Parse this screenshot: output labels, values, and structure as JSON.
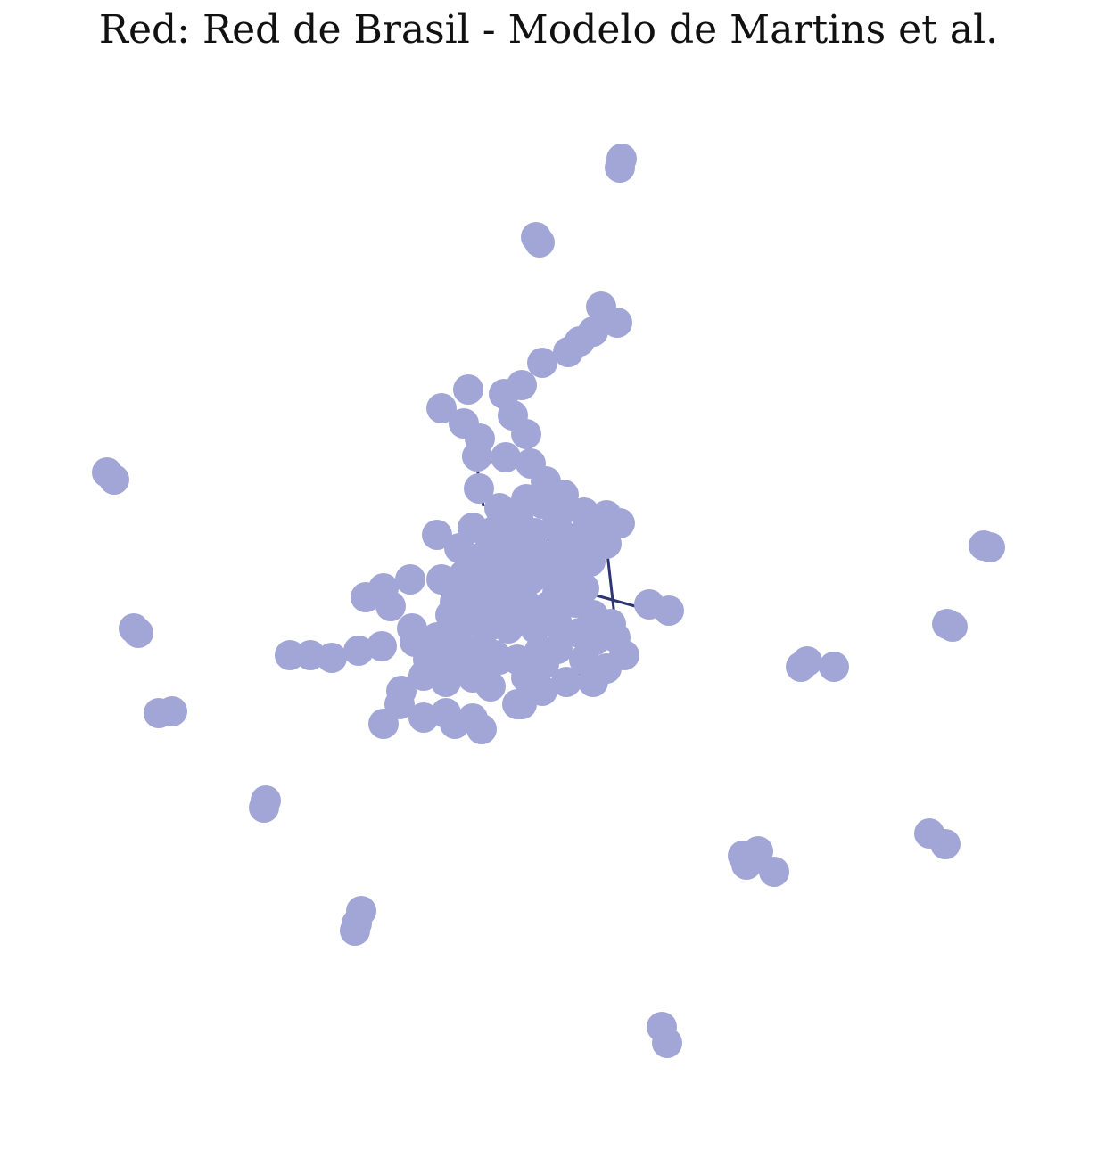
{
  "figure": {
    "title": "Red: Red de Brasil - Modelo de Martins et al."
  },
  "style": {
    "node_color": "#A1A6D6",
    "edge_color": "#2E3575",
    "background": "#FFFFFF"
  }
}
